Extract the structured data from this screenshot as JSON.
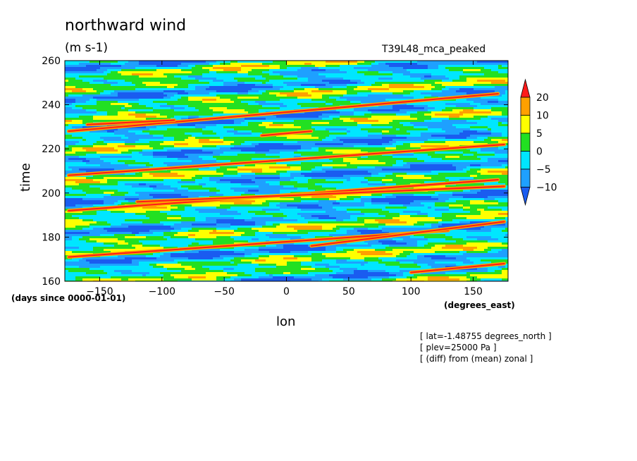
{
  "chart_data": {
    "type": "heatmap",
    "title": "northward wind",
    "units": "(m s-1)",
    "run_label": "T39L48_mca_peaked",
    "xlabel": "lon",
    "x_units": "(degrees_east)",
    "ylabel": "time",
    "y_units": "(days since 0000-01-01)",
    "xlim": [
      -178,
      178
    ],
    "ylim": [
      160,
      260
    ],
    "x_ticks": [
      -150,
      -100,
      -50,
      0,
      50,
      100,
      150
    ],
    "y_ticks": [
      160,
      180,
      200,
      220,
      240,
      260
    ],
    "colorbar": {
      "levels": [
        -10,
        -5,
        0,
        5,
        10,
        20
      ],
      "colors": [
        "#1a5cf0",
        "#1ea0ff",
        "#00e6ff",
        "#22e022",
        "#ffff00",
        "#ffa000",
        "#ff1a1a"
      ],
      "extend": "both"
    },
    "streaks": [
      {
        "lon_start": -175,
        "lon_end": 130,
        "time_start": 171,
        "time_end": 183
      },
      {
        "lon_start": -175,
        "lon_end": 170,
        "time_start": 192,
        "time_end": 206
      },
      {
        "lon_start": -120,
        "lon_end": 175,
        "time_start": 196,
        "time_end": 203
      },
      {
        "lon_start": -175,
        "lon_end": 175,
        "time_start": 208,
        "time_end": 222
      },
      {
        "lon_start": -175,
        "lon_end": 170,
        "time_start": 228,
        "time_end": 245
      },
      {
        "lon_start": -160,
        "lon_end": -90,
        "time_start": 231,
        "time_end": 233
      },
      {
        "lon_start": -20,
        "lon_end": 20,
        "time_start": 226,
        "time_end": 228
      },
      {
        "lon_start": 100,
        "lon_end": 175,
        "time_start": 164,
        "time_end": 168
      },
      {
        "lon_start": 20,
        "lon_end": 175,
        "time_start": 176,
        "time_end": 187
      }
    ]
  },
  "notes": [
    "[ lat=-1.48755 degrees_north ]",
    "[ plev=25000 Pa ]",
    "[ (diff) from (mean) zonal ]"
  ]
}
